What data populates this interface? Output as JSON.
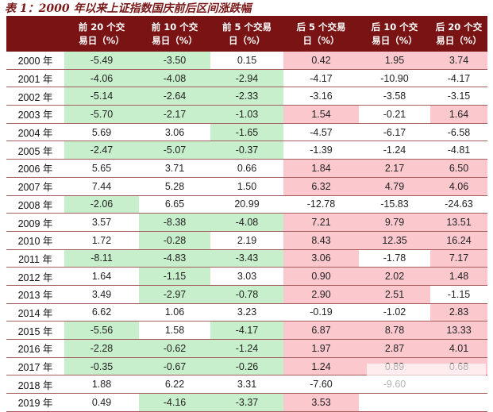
{
  "title": "表 1：2000 年以来上证指数国庆前后区间涨跌幅",
  "header": {
    "year": "",
    "cols": [
      [
        "前 20 个交",
        "易日（%）"
      ],
      [
        "前 10 个交",
        "易日（%）"
      ],
      [
        "前 5 个交易",
        "日（%）"
      ],
      [
        "后 5 个交易",
        "日（%）"
      ],
      [
        "后 10 个交",
        "易日（%）"
      ],
      [
        "后 20 个交",
        "易日（%）"
      ]
    ]
  },
  "colors": {
    "header_bg": "#7a1414",
    "positive": "#fbc8ce",
    "negative": "#c8efcc"
  },
  "rows": [
    {
      "year": "2000 年",
      "values": [
        "-5.49",
        "-3.50",
        "0.15",
        "0.42",
        "1.95",
        "3.74"
      ]
    },
    {
      "year": "2001 年",
      "values": [
        "-4.06",
        "-4.08",
        "-2.94",
        "-4.17",
        "-10.90",
        "-4.17"
      ]
    },
    {
      "year": "2002 年",
      "values": [
        "-5.14",
        "-2.64",
        "-2.33",
        "-3.16",
        "-3.58",
        "-3.15"
      ]
    },
    {
      "year": "2003 年",
      "values": [
        "-5.70",
        "-2.17",
        "-1.03",
        "1.54",
        "-0.21",
        "1.64"
      ]
    },
    {
      "year": "2004 年",
      "values": [
        "5.69",
        "3.06",
        "-1.65",
        "-4.57",
        "-6.17",
        "-6.58"
      ]
    },
    {
      "year": "2005 年",
      "values": [
        "-2.47",
        "-5.07",
        "-0.37",
        "-1.39",
        "-1.24",
        "-4.81"
      ]
    },
    {
      "year": "2006 年",
      "values": [
        "5.65",
        "3.71",
        "0.66",
        "1.84",
        "2.17",
        "6.50"
      ]
    },
    {
      "year": "2007 年",
      "values": [
        "7.44",
        "5.28",
        "1.50",
        "6.32",
        "4.79",
        "4.06"
      ]
    },
    {
      "year": "2008 年",
      "values": [
        "-2.06",
        "6.65",
        "20.99",
        "-12.78",
        "-15.83",
        "-24.63"
      ]
    },
    {
      "year": "2009 年",
      "values": [
        "3.57",
        "-8.38",
        "-4.08",
        "7.21",
        "9.79",
        "13.51"
      ]
    },
    {
      "year": "2010 年",
      "values": [
        "1.72",
        "-0.28",
        "2.19",
        "8.43",
        "12.35",
        "16.24"
      ]
    },
    {
      "year": "2011 年",
      "values": [
        "-8.11",
        "-4.83",
        "-3.43",
        "3.06",
        "-1.78",
        "7.17"
      ]
    },
    {
      "year": "2012 年",
      "values": [
        "1.64",
        "-1.15",
        "3.03",
        "0.90",
        "2.02",
        "1.48"
      ]
    },
    {
      "year": "2013 年",
      "values": [
        "3.49",
        "-2.97",
        "-0.78",
        "2.90",
        "2.51",
        "-1.15"
      ]
    },
    {
      "year": "2014 年",
      "values": [
        "6.62",
        "1.06",
        "3.23",
        "-0.19",
        "-1.02",
        "2.83"
      ]
    },
    {
      "year": "2015 年",
      "values": [
        "-5.56",
        "1.58",
        "-4.17",
        "6.87",
        "8.78",
        "13.33"
      ]
    },
    {
      "year": "2016 年",
      "values": [
        "-2.28",
        "-0.62",
        "-1.24",
        "1.97",
        "2.87",
        "4.01"
      ]
    },
    {
      "year": "2017 年",
      "values": [
        "-0.35",
        "-0.67",
        "-0.26",
        "1.24",
        "0.89",
        "0.68"
      ]
    },
    {
      "year": "2018 年",
      "values": [
        "1.88",
        "6.22",
        "3.31",
        "-7.60",
        "-9.60",
        ""
      ]
    },
    {
      "year": "2019 年",
      "values": [
        "0.49",
        "-4.16",
        "-3.37",
        "3.53",
        "",
        ""
      ]
    }
  ]
}
